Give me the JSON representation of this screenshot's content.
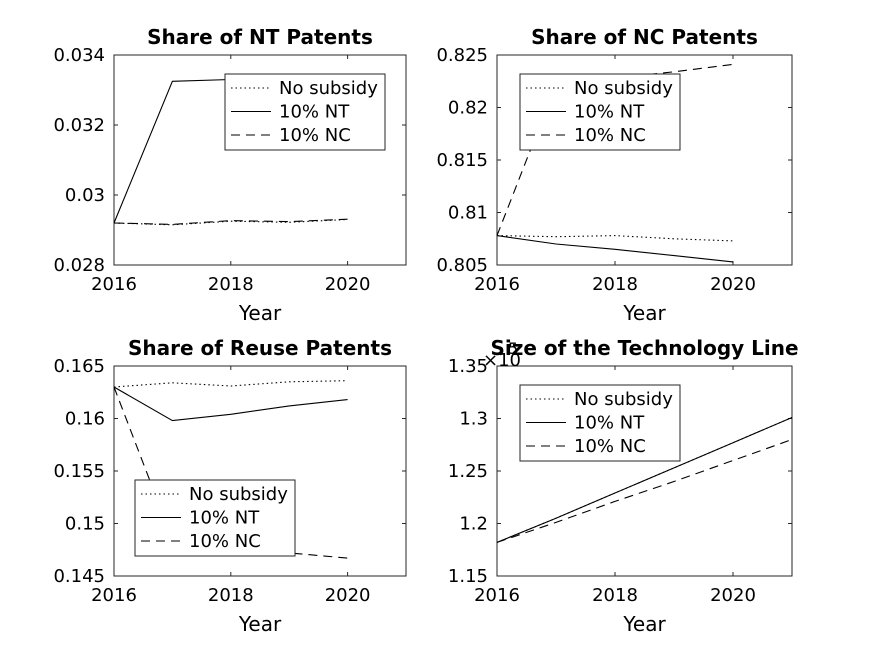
{
  "chart_data": [
    {
      "type": "line",
      "title": "Share of NT Patents",
      "xlabel": "Year",
      "ylabel": "",
      "xlim": [
        2016,
        2021
      ],
      "ylim": [
        0.028,
        0.034
      ],
      "xticks": [
        2016,
        2018,
        2020
      ],
      "xtick_labels": [
        "2016",
        "2018",
        "2020"
      ],
      "yticks": [
        0.028,
        0.03,
        0.032,
        0.034
      ],
      "ytick_labels": [
        "0.028",
        "0.03",
        "0.032",
        "0.034"
      ],
      "legend_position": "top-right",
      "series": [
        {
          "name": "No subsidy",
          "style": "dotted",
          "x": [
            2016,
            2017,
            2018,
            2019,
            2020
          ],
          "values": [
            0.0292,
            0.02915,
            0.02925,
            0.02922,
            0.0293
          ]
        },
        {
          "name": "10% NT",
          "style": "solid",
          "x": [
            2016,
            2017,
            2018,
            2019,
            2020
          ],
          "values": [
            0.0292,
            0.03325,
            0.0333,
            0.03335,
            0.0334
          ]
        },
        {
          "name": "10% NC",
          "style": "dashed",
          "x": [
            2016,
            2017,
            2018,
            2019,
            2020
          ],
          "values": [
            0.0292,
            0.02916,
            0.02927,
            0.02924,
            0.02931
          ]
        }
      ]
    },
    {
      "type": "line",
      "title": "Share of NC Patents",
      "xlabel": "Year",
      "ylabel": "",
      "xlim": [
        2016,
        2021
      ],
      "ylim": [
        0.805,
        0.825
      ],
      "xticks": [
        2016,
        2018,
        2020
      ],
      "xtick_labels": [
        "2016",
        "2018",
        "2020"
      ],
      "yticks": [
        0.805,
        0.81,
        0.815,
        0.82,
        0.825
      ],
      "ytick_labels": [
        "0.805",
        "0.81",
        "0.815",
        "0.82",
        "0.825"
      ],
      "legend_position": "top-left",
      "series": [
        {
          "name": "No subsidy",
          "style": "dotted",
          "x": [
            2016,
            2017,
            2018,
            2019,
            2020
          ],
          "values": [
            0.8078,
            0.8077,
            0.8078,
            0.8075,
            0.8073
          ]
        },
        {
          "name": "10% NT",
          "style": "solid",
          "x": [
            2016,
            2017,
            2018,
            2019,
            2020
          ],
          "values": [
            0.8078,
            0.807,
            0.8065,
            0.8059,
            0.8053
          ]
        },
        {
          "name": "10% NC",
          "style": "dashed",
          "x": [
            2016,
            2017,
            2018,
            2019,
            2020
          ],
          "values": [
            0.8078,
            0.8222,
            0.8228,
            0.8234,
            0.8241
          ]
        }
      ]
    },
    {
      "type": "line",
      "title": "Share of Reuse Patents",
      "xlabel": "Year",
      "ylabel": "",
      "xlim": [
        2016,
        2021
      ],
      "ylim": [
        0.145,
        0.165
      ],
      "xticks": [
        2016,
        2018,
        2020
      ],
      "xtick_labels": [
        "2016",
        "2018",
        "2020"
      ],
      "yticks": [
        0.145,
        0.15,
        0.155,
        0.16,
        0.165
      ],
      "ytick_labels": [
        "0.145",
        "0.15",
        "0.155",
        "0.16",
        "0.165"
      ],
      "legend_position": "bottom-center",
      "series": [
        {
          "name": "No subsidy",
          "style": "dotted",
          "x": [
            2016,
            2017,
            2018,
            2019,
            2020
          ],
          "values": [
            0.163,
            0.1634,
            0.1631,
            0.1635,
            0.1636
          ]
        },
        {
          "name": "10% NT",
          "style": "solid",
          "x": [
            2016,
            2017,
            2018,
            2019,
            2020
          ],
          "values": [
            0.163,
            0.1598,
            0.1604,
            0.1612,
            0.1618
          ]
        },
        {
          "name": "10% NC",
          "style": "dashed",
          "x": [
            2016,
            2017,
            2018,
            2019,
            2020
          ],
          "values": [
            0.163,
            0.1485,
            0.1477,
            0.1472,
            0.1467
          ]
        }
      ]
    },
    {
      "type": "line",
      "title": "Size of the Technology Line",
      "exponent_label": "5",
      "xlabel": "Year",
      "ylabel": "",
      "xlim": [
        2016,
        2021
      ],
      "ylim": [
        1.15,
        1.35
      ],
      "xticks": [
        2016,
        2018,
        2020
      ],
      "xtick_labels": [
        "2016",
        "2018",
        "2020"
      ],
      "yticks": [
        1.15,
        1.2,
        1.25,
        1.3,
        1.35
      ],
      "ytick_labels": [
        "1.15",
        "1.2",
        "1.25",
        "1.3",
        "1.35"
      ],
      "legend_position": "top-left",
      "series": [
        {
          "name": "No subsidy",
          "style": "dotted",
          "x": [
            2016,
            2017,
            2018,
            2019,
            2020,
            2021
          ],
          "values": [
            1.182,
            1.205,
            1.229,
            1.253,
            1.277,
            1.301
          ]
        },
        {
          "name": "10% NT",
          "style": "solid",
          "x": [
            2016,
            2017,
            2018,
            2019,
            2020,
            2021
          ],
          "values": [
            1.182,
            1.205,
            1.229,
            1.253,
            1.277,
            1.301
          ]
        },
        {
          "name": "10% NC",
          "style": "dashed",
          "x": [
            2016,
            2017,
            2018,
            2019,
            2020,
            2021
          ],
          "values": [
            1.182,
            1.201,
            1.221,
            1.24,
            1.26,
            1.28
          ]
        }
      ]
    }
  ]
}
